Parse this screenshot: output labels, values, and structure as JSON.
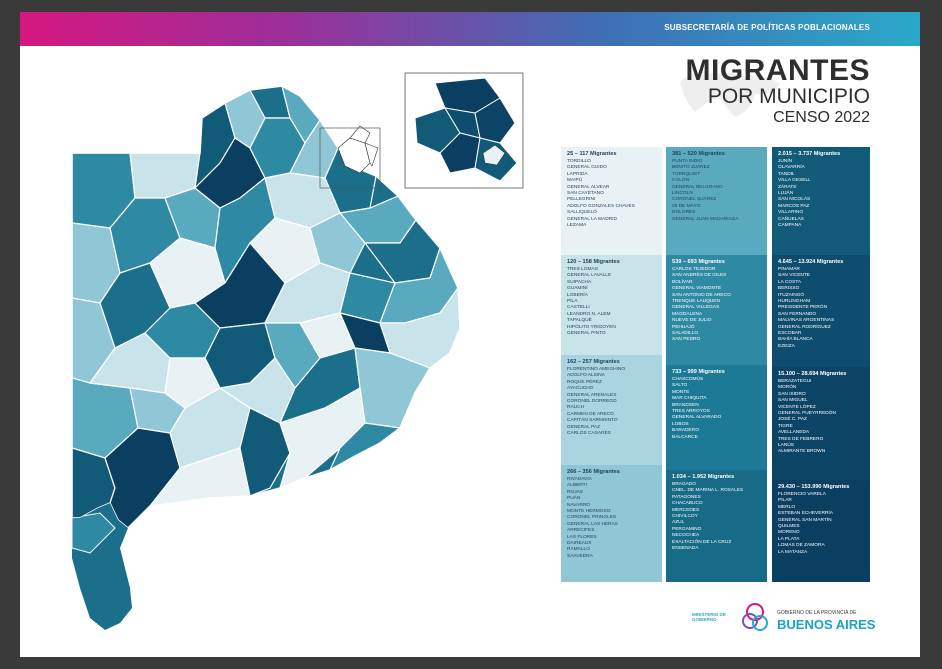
{
  "header": {
    "subtitle": "SUBSECRETARÍA DE POLÍTICAS POBLACIONALES"
  },
  "title": {
    "line1": "MIGRANTES",
    "line2": "POR MUNICIPIO",
    "line3": "CENSO 2022"
  },
  "colors": {
    "c1": "#e8f1f4",
    "c2": "#c9e3ea",
    "c3": "#8fc7d6",
    "c4": "#5aaabf",
    "c5": "#2e8aa3",
    "c6": "#1b6f8a",
    "c7": "#115a78",
    "c8": "#0b3f62"
  },
  "legend": [
    {
      "range": "25 – 117 Migrantes",
      "color": "#e8f1f4",
      "dark": false,
      "items": [
        "Tordillo",
        "General Guido",
        "Laprida",
        "Maipú",
        "General Alvear",
        "San Cayetano",
        "Pellegrini",
        "Adolfo Gonzales Chaves",
        "Salliqueló",
        "General La Madrid",
        "Lezama"
      ]
    },
    {
      "range": "120 – 158 Migrantes",
      "color": "#c9e3ea",
      "dark": false,
      "items": [
        "Tres Lomas",
        "General Lavalle",
        "Suipacha",
        "Guaminí",
        "Lobería",
        "Pila",
        "Castelli",
        "Leandro N. Alem",
        "Tapalqué",
        "Hipólito Yrigoyen",
        "General Pinto"
      ]
    },
    {
      "range": "162 – 257 Migrantes",
      "color": "#a9d4e0",
      "dark": false,
      "items": [
        "Florentino Ameghino",
        "Adolfo Alsina",
        "Roque Pérez",
        "Ayacucho",
        "General Arenales",
        "Coronel Dorrego",
        "Rauch",
        "Carmen de Areco",
        "Capitán Sarmiento",
        "General Paz",
        "Carlos Casares"
      ]
    },
    {
      "range": "266 – 356 Migrantes",
      "color": "#8fc7d6",
      "dark": false,
      "items": [
        "Rivadavia",
        "Alberti",
        "Rojas",
        "Puán",
        "Navarro",
        "Monte Hermoso",
        "Coronel Pringles",
        "General Las Heras",
        "Arrecifes",
        "Las Flores",
        "Daireaux",
        "Ramallo",
        "Saavedra"
      ]
    },
    {
      "range": "381 – 520 Migrantes",
      "color": "#5aaabf",
      "dark": false,
      "items": [
        "Punta Indio",
        "Benito Juárez",
        "Tornquist",
        "Colón",
        "General Belgrano",
        "Lincoln",
        "Coronel Suárez",
        "25 de Mayo",
        "Dolores",
        "General Juan Madariaga"
      ]
    },
    {
      "range": "539 – 693 Migrantes",
      "color": "#2e8aa3",
      "dark": true,
      "items": [
        "Carlos Tejedor",
        "San Andrés de Giles",
        "Bolívar",
        "General Viamonte",
        "San Antonio de Areco",
        "Trenque Lauquen",
        "General Villegas",
        "Magdalena",
        "Nueve de Julio",
        "Pehuajó",
        "Saladillo",
        "San Pedro"
      ]
    },
    {
      "range": "733 – 999 Migrantes",
      "color": "#1d7a96",
      "dark": true,
      "items": [
        "Chascomús",
        "Salto",
        "Monte",
        "Mar Chiquita",
        "Brandsen",
        "Tres Arroyos",
        "General Alvarado",
        "Lobos",
        "Baradero",
        "Balcarce"
      ]
    },
    {
      "range": "1.034 – 1.952 Migrantes",
      "color": "#176b86",
      "dark": true,
      "items": [
        "Bragado",
        "Cnel. de Marina L. Rosales",
        "Patagones",
        "Chacabuco",
        "Mercedes",
        "Chivilcoy",
        "Azul",
        "Pergamino",
        "Necochea",
        "Exaltación de la Cruz",
        "Ensenada"
      ]
    },
    {
      "range": "2.015 – 3.737 Migrantes",
      "color": "#115a78",
      "dark": true,
      "items": [
        "Junín",
        "Olavarría",
        "Tandil",
        "Villa Gesell",
        "Zárate",
        "Luján",
        "San Nicolás",
        "Marcos Paz",
        "Villarino",
        "Cañuelas",
        "Campana"
      ]
    },
    {
      "range": "4.645 – 13.924 Migrantes",
      "color": "#0e4d6e",
      "dark": true,
      "items": [
        "Pinamar",
        "San Vicente",
        "La Costa",
        "Berisso",
        "Ituzaingó",
        "Hurlingham",
        "Presidente Perón",
        "San Fernando",
        "Malvinas Argentinas",
        "General Rodríguez",
        "Escobar",
        "Bahía Blanca",
        "Ezeiza"
      ]
    },
    {
      "range": "15.100 – 28.694 Migrantes",
      "color": "#0c4466",
      "dark": true,
      "items": [
        "Berazategui",
        "Morón",
        "San Isidro",
        "San Miguel",
        "Vicente López",
        "General Pueyrredón",
        "José C. Paz",
        "Tigre",
        "Avellaneda",
        "Tres de Febrero",
        "Lanús",
        "Almirante Brown"
      ]
    },
    {
      "range": "29.430 – 153.990 Migrantes",
      "color": "#0b3f62",
      "dark": true,
      "items": [
        "Florencio Varela",
        "Pilar",
        "Merlo",
        "Esteban Echeverría",
        "General San Martín",
        "Quilmes",
        "Moreno",
        "La Plata",
        "Lomas de Zamora",
        "La Matanza"
      ]
    }
  ],
  "footer": {
    "ministry": [
      "MINISTERIO DE",
      "GOBIERNO"
    ],
    "gov_line1": "GOBIERNO DE LA PROVINCIA DE",
    "gov_line2": "BUENOS AIRES"
  }
}
